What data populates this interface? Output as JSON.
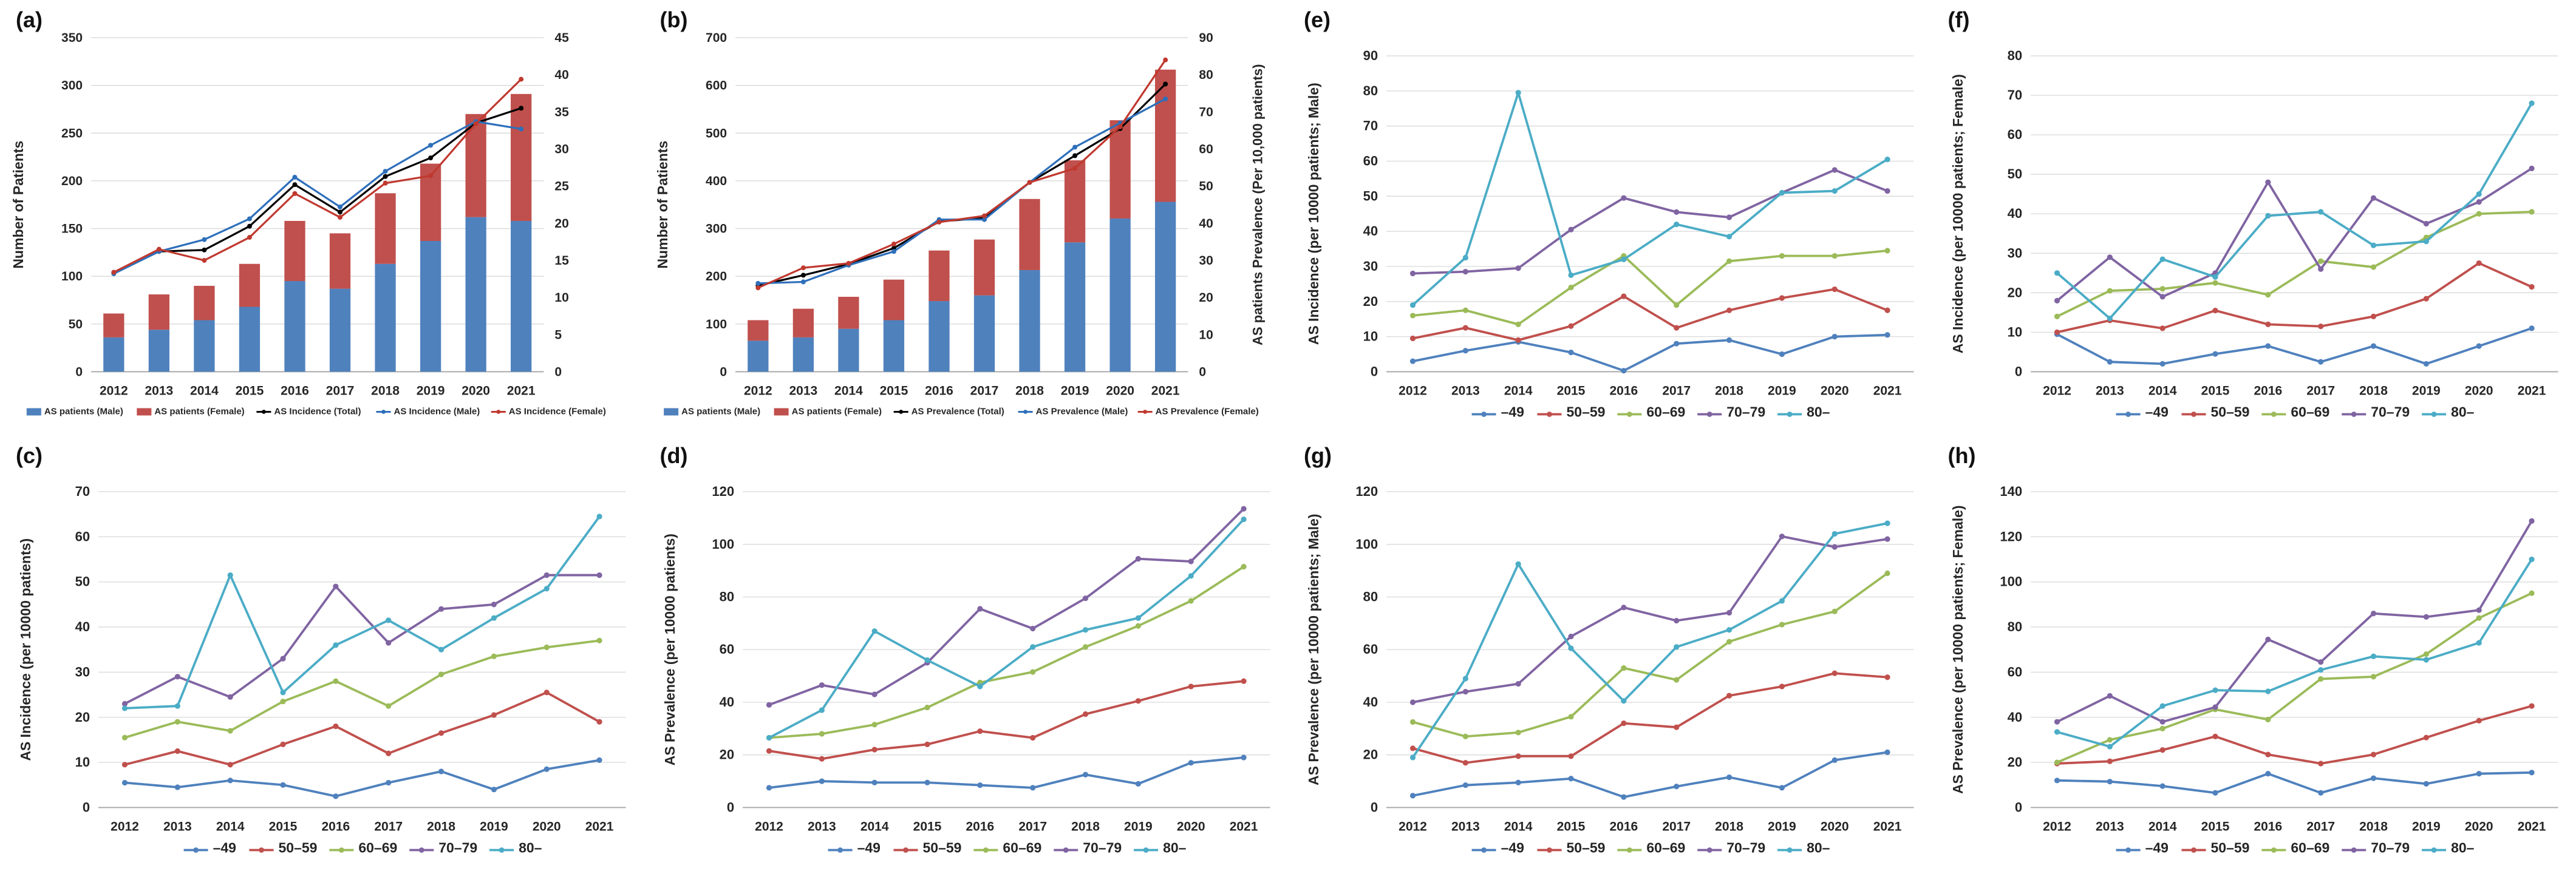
{
  "figure": {
    "description": "Eight-panel figure of AS (ankylosing spondylitis) patient numbers, incidence and prevalence, 2012-2021",
    "palette": {
      "background": "#ffffff",
      "grid": "#d9d9d9",
      "baseline": "#a6a6a6",
      "text": "#262626",
      "bar_male_blue": "#4F81BD",
      "bar_female_red": "#C0504D",
      "age_blue": "#4F81BD",
      "age_red": "#C0504D",
      "age_green": "#9BBB59",
      "age_purple": "#8064A2",
      "age_cyan": "#4BACC6"
    }
  },
  "chart_data": [
    {
      "panel": "(a)",
      "type": "combo-stacked-bar-line",
      "categories": [
        "2012",
        "2013",
        "2014",
        "2015",
        "2016",
        "2017",
        "2018",
        "2019",
        "2020",
        "2021"
      ],
      "y_left": {
        "label": "Number of Patients",
        "min": 0,
        "max": 350,
        "step": 50
      },
      "y_right": {
        "label": "",
        "min": 0,
        "max": 45,
        "step": 5
      },
      "bars": [
        {
          "name": "AS patients (Male)",
          "color": "#4F81BD",
          "values": [
            36,
            44,
            54,
            68,
            95,
            87,
            113,
            137,
            162,
            158
          ]
        },
        {
          "name": "AS patients (Female)",
          "color": "#C0504D",
          "values": [
            25,
            37,
            36,
            45,
            63,
            58,
            74,
            81,
            108,
            133
          ]
        }
      ],
      "lines": [
        {
          "name": "AS Incidence (Total)",
          "color": "#000000",
          "axis": "right",
          "values": [
            13.3,
            16.2,
            16.4,
            19.6,
            25.2,
            21.5,
            26.3,
            28.8,
            33.5,
            35.5
          ]
        },
        {
          "name": "AS Incidence (Male)",
          "color": "#2E6FBA",
          "axis": "right",
          "values": [
            13.2,
            16.2,
            17.8,
            20.6,
            26.2,
            22.2,
            27.0,
            30.5,
            33.7,
            32.7
          ]
        },
        {
          "name": "AS Incidence (Female)",
          "color": "#C0392F",
          "axis": "right",
          "values": [
            13.4,
            16.5,
            15.0,
            18.1,
            24.0,
            20.8,
            25.4,
            26.4,
            33.4,
            39.4
          ]
        }
      ],
      "legend_position": "bottom"
    },
    {
      "panel": "(b)",
      "type": "combo-stacked-bar-line",
      "categories": [
        "2012",
        "2013",
        "2014",
        "2015",
        "2016",
        "2017",
        "2018",
        "2019",
        "2020",
        "2021"
      ],
      "y_left": {
        "label": "Number of Patients",
        "min": 0,
        "max": 700,
        "step": 100
      },
      "y_right": {
        "label": "AS patients Prevalence (Per 10,000 patients)",
        "min": 0,
        "max": 90,
        "step": 10
      },
      "bars": [
        {
          "name": "AS patients (Male)",
          "color": "#4F81BD",
          "values": [
            65,
            72,
            90,
            108,
            148,
            160,
            213,
            271,
            321,
            356
          ]
        },
        {
          "name": "AS patients (Female)",
          "color": "#C0504D",
          "values": [
            43,
            60,
            67,
            85,
            106,
            117,
            149,
            172,
            206,
            277
          ]
        }
      ],
      "lines": [
        {
          "name": "AS Prevalence (Total)",
          "color": "#000000",
          "axis": "right",
          "values": [
            23.2,
            26.0,
            29.0,
            33.3,
            40.5,
            41.4,
            51.0,
            58.2,
            65.5,
            77.5
          ]
        },
        {
          "name": "AS Prevalence (Male)",
          "color": "#2E6FBA",
          "axis": "right",
          "values": [
            23.8,
            24.2,
            28.7,
            32.4,
            41.0,
            41.0,
            51.0,
            60.5,
            67.0,
            73.5
          ]
        },
        {
          "name": "AS Prevalence (Female)",
          "color": "#C0392F",
          "axis": "right",
          "values": [
            22.6,
            28.0,
            29.2,
            34.4,
            40.3,
            42.0,
            51.0,
            54.8,
            66.0,
            84.0
          ]
        }
      ],
      "legend_position": "bottom"
    },
    {
      "panel": "(c)",
      "type": "line",
      "categories": [
        "2012",
        "2013",
        "2014",
        "2015",
        "2016",
        "2017",
        "2018",
        "2019",
        "2020",
        "2021"
      ],
      "y": {
        "label": "AS Incidence (per 10000 patients)",
        "min": 0,
        "max": 70,
        "step": 10
      },
      "series": [
        {
          "name": "–49",
          "color": "#4F81BD",
          "values": [
            5.5,
            4.5,
            6,
            5,
            2.5,
            5.5,
            8,
            4,
            8.5,
            10.5
          ]
        },
        {
          "name": "50–59",
          "color": "#C0504D",
          "values": [
            9.5,
            12.5,
            9.5,
            14,
            18,
            12,
            16.5,
            20.5,
            25.5,
            19
          ]
        },
        {
          "name": "60–69",
          "color": "#9BBB59",
          "values": [
            15.5,
            19,
            17,
            23.5,
            28,
            22.5,
            29.5,
            33.5,
            35.5,
            37
          ]
        },
        {
          "name": "70–79",
          "color": "#8064A2",
          "values": [
            23,
            29,
            24.5,
            33,
            49,
            36.5,
            44,
            45,
            51.5,
            51.5
          ]
        },
        {
          "name": "80–",
          "color": "#4BACC6",
          "values": [
            22,
            22.5,
            51.5,
            25.5,
            36,
            41.5,
            35,
            42,
            48.5,
            64.5
          ]
        }
      ],
      "legend_position": "bottom"
    },
    {
      "panel": "(d)",
      "type": "line",
      "categories": [
        "2012",
        "2013",
        "2014",
        "2015",
        "2016",
        "2017",
        "2018",
        "2019",
        "2020",
        "2021"
      ],
      "y": {
        "label": "AS Prevalence (per 10000 patients)",
        "min": 0,
        "max": 120,
        "step": 20
      },
      "series": [
        {
          "name": "–49",
          "color": "#4F81BD",
          "values": [
            7.5,
            10,
            9.5,
            9.5,
            8.5,
            7.5,
            12.5,
            9,
            17,
            19
          ]
        },
        {
          "name": "50–59",
          "color": "#C0504D",
          "values": [
            21.5,
            18.5,
            22,
            24,
            29,
            26.5,
            35.5,
            40.5,
            46,
            48
          ]
        },
        {
          "name": "60–69",
          "color": "#9BBB59",
          "values": [
            26.5,
            28,
            31.5,
            38,
            47.5,
            51.5,
            61,
            69,
            78.5,
            91.5
          ]
        },
        {
          "name": "70–79",
          "color": "#8064A2",
          "values": [
            39,
            46.5,
            43,
            55,
            75.5,
            68,
            79.5,
            94.5,
            93.5,
            113.5
          ]
        },
        {
          "name": "80–",
          "color": "#4BACC6",
          "values": [
            26.5,
            37,
            67,
            56,
            46,
            61,
            67.5,
            72,
            88,
            109.5
          ]
        }
      ],
      "legend_position": "bottom"
    },
    {
      "panel": "(e)",
      "type": "line",
      "categories": [
        "2012",
        "2013",
        "2014",
        "2015",
        "2016",
        "2017",
        "2018",
        "2019",
        "2020",
        "2021"
      ],
      "y": {
        "label": "AS Incidence (per 10000 patients; Male)",
        "min": 0,
        "max": 90,
        "step": 10
      },
      "series": [
        {
          "name": "–49",
          "color": "#4F81BD",
          "values": [
            3,
            6,
            8.5,
            5.5,
            0.3,
            8,
            9,
            5,
            10,
            10.5
          ]
        },
        {
          "name": "50–59",
          "color": "#C0504D",
          "values": [
            9.5,
            12.5,
            9,
            13,
            21.5,
            12.5,
            17.5,
            21,
            23.5,
            17.5
          ]
        },
        {
          "name": "60–69",
          "color": "#9BBB59",
          "values": [
            16,
            17.5,
            13.5,
            24,
            33,
            19,
            31.5,
            33,
            33,
            34.5
          ]
        },
        {
          "name": "70–79",
          "color": "#8064A2",
          "values": [
            28,
            28.5,
            29.5,
            40.5,
            49.5,
            45.5,
            44,
            51,
            57.5,
            51.5
          ]
        },
        {
          "name": "80–",
          "color": "#4BACC6",
          "values": [
            19,
            32.5,
            79.5,
            27.5,
            32,
            42,
            38.5,
            51,
            51.5,
            60.5
          ]
        }
      ],
      "legend_position": "bottom"
    },
    {
      "panel": "(f)",
      "type": "line",
      "categories": [
        "2012",
        "2013",
        "2014",
        "2015",
        "2016",
        "2017",
        "2018",
        "2019",
        "2020",
        "2021"
      ],
      "y": {
        "label": "AS Incidence (per 10000 patients; Female)",
        "min": 0,
        "max": 80,
        "step": 10
      },
      "series": [
        {
          "name": "–49",
          "color": "#4F81BD",
          "values": [
            9.5,
            2.5,
            2,
            4.5,
            6.5,
            2.5,
            6.5,
            2,
            6.5,
            11
          ]
        },
        {
          "name": "50–59",
          "color": "#C0504D",
          "values": [
            10,
            13,
            11,
            15.5,
            12,
            11.5,
            14,
            18.5,
            27.5,
            21.5
          ]
        },
        {
          "name": "60–69",
          "color": "#9BBB59",
          "values": [
            14,
            20.5,
            21,
            22.5,
            19.5,
            28,
            26.5,
            34,
            40,
            40.5
          ]
        },
        {
          "name": "70–79",
          "color": "#8064A2",
          "values": [
            18,
            29,
            19,
            25,
            48,
            26,
            44,
            37.5,
            43,
            51.5
          ]
        },
        {
          "name": "80–",
          "color": "#4BACC6",
          "values": [
            25,
            13.5,
            28.5,
            24,
            39.5,
            40.5,
            32,
            33,
            45,
            68
          ]
        }
      ],
      "legend_position": "bottom"
    },
    {
      "panel": "(g)",
      "type": "line",
      "categories": [
        "2012",
        "2013",
        "2014",
        "2015",
        "2016",
        "2017",
        "2018",
        "2019",
        "2020",
        "2021"
      ],
      "y": {
        "label": "AS Prevalence (per 10000 patients; Male)",
        "min": 0,
        "max": 120,
        "step": 20
      },
      "series": [
        {
          "name": "–49",
          "color": "#4F81BD",
          "values": [
            4.5,
            8.5,
            9.5,
            11,
            4,
            8,
            11.5,
            7.5,
            18,
            21
          ]
        },
        {
          "name": "50–59",
          "color": "#C0504D",
          "values": [
            22.5,
            17,
            19.5,
            19.5,
            32,
            30.5,
            42.5,
            46,
            51,
            49.5
          ]
        },
        {
          "name": "60–69",
          "color": "#9BBB59",
          "values": [
            32.5,
            27,
            28.5,
            34.5,
            53,
            48.5,
            63,
            69.5,
            74.5,
            89
          ]
        },
        {
          "name": "70–79",
          "color": "#8064A2",
          "values": [
            40,
            44,
            47,
            65,
            76,
            71,
            74,
            103,
            99,
            102
          ]
        },
        {
          "name": "80–",
          "color": "#4BACC6",
          "values": [
            19,
            49,
            92.5,
            60.5,
            40.5,
            61,
            67.5,
            78.5,
            104,
            108
          ]
        }
      ],
      "legend_position": "bottom"
    },
    {
      "panel": "(h)",
      "type": "line",
      "categories": [
        "2012",
        "2013",
        "2014",
        "2015",
        "2016",
        "2017",
        "2018",
        "2019",
        "2020",
        "2021"
      ],
      "y": {
        "label": "AS Prevalence (per 10000 patients; Female)",
        "min": 0,
        "max": 140,
        "step": 20
      },
      "series": [
        {
          "name": "–49",
          "color": "#4F81BD",
          "values": [
            12,
            11.5,
            9.5,
            6.5,
            15,
            6.5,
            13,
            10.5,
            15,
            15.5
          ]
        },
        {
          "name": "50–59",
          "color": "#C0504D",
          "values": [
            19.5,
            20.5,
            25.5,
            31.5,
            23.5,
            19.5,
            23.5,
            31,
            38.5,
            45
          ]
        },
        {
          "name": "60–69",
          "color": "#9BBB59",
          "values": [
            20,
            30,
            35,
            43.5,
            39,
            57,
            58,
            68,
            84,
            95
          ]
        },
        {
          "name": "70–79",
          "color": "#8064A2",
          "values": [
            38,
            49.5,
            38,
            44.5,
            74.5,
            64.5,
            86,
            84.5,
            87.5,
            127
          ]
        },
        {
          "name": "80–",
          "color": "#4BACC6",
          "values": [
            33.5,
            27,
            45,
            52,
            51.5,
            61,
            67,
            65.5,
            73,
            110
          ]
        }
      ],
      "legend_position": "bottom"
    }
  ]
}
